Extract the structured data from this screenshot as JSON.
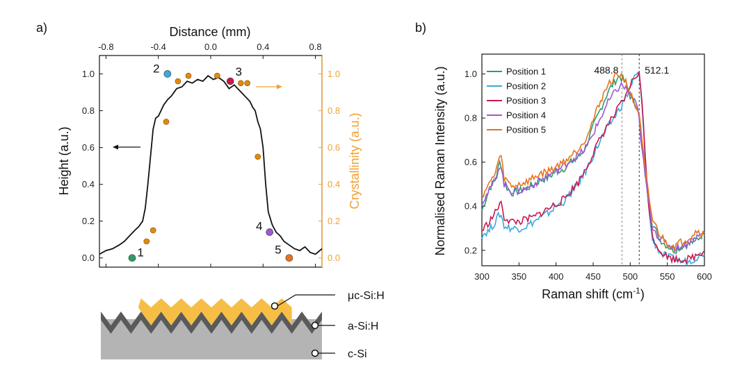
{
  "colors": {
    "height_line": "#111111",
    "crystallinity": "#F0A030",
    "crystallinity_point": "#E08A10",
    "p1": "#2E9C6A",
    "p2": "#39A9DE",
    "p3": "#C8184E",
    "p4": "#9B59D6",
    "p5": "#E8731C",
    "mu_layer": "#F6BE45",
    "a_layer": "#5A5A5A",
    "c_layer": "#B4B4B4"
  },
  "chart_data": [
    {
      "type": "line",
      "panel_label": "a)",
      "title": "Distance (mm)",
      "xlabel": "Distance (mm)",
      "ylabel": "Height (a.u.)",
      "y2label": "Crystallinity (a.u.)",
      "xlim": [
        -0.85,
        0.85
      ],
      "ylim": [
        -0.05,
        1.1
      ],
      "y2lim": [
        -0.05,
        1.1
      ],
      "x_ticks": [
        "-0.8",
        "-0.4",
        "0.0",
        "0.4",
        "0.8"
      ],
      "x_tick_values": [
        -0.8,
        -0.4,
        0.0,
        0.4,
        0.8
      ],
      "y_ticks": [
        "0.0",
        "0.2",
        "0.4",
        "0.6",
        "0.8",
        "1.0"
      ],
      "y_tick_values": [
        0.0,
        0.2,
        0.4,
        0.6,
        0.8,
        1.0
      ],
      "y2_ticks": [
        "0.0",
        "0.2",
        "0.4",
        "0.6",
        "0.8",
        "1.0"
      ],
      "height_profile": {
        "name": "Height",
        "x": [
          -0.85,
          -0.8,
          -0.75,
          -0.7,
          -0.66,
          -0.62,
          -0.58,
          -0.55,
          -0.52,
          -0.5,
          -0.48,
          -0.46,
          -0.44,
          -0.42,
          -0.4,
          -0.38,
          -0.36,
          -0.33,
          -0.3,
          -0.26,
          -0.22,
          -0.18,
          -0.14,
          -0.1,
          -0.06,
          -0.02,
          0.02,
          0.06,
          0.1,
          0.14,
          0.18,
          0.22,
          0.26,
          0.3,
          0.32,
          0.34,
          0.36,
          0.38,
          0.4,
          0.42,
          0.44,
          0.47,
          0.5,
          0.53,
          0.56,
          0.6,
          0.64,
          0.68,
          0.72,
          0.76,
          0.8,
          0.85
        ],
        "y": [
          0.02,
          0.04,
          0.05,
          0.07,
          0.09,
          0.12,
          0.15,
          0.17,
          0.2,
          0.27,
          0.4,
          0.55,
          0.7,
          0.76,
          0.77,
          0.8,
          0.83,
          0.86,
          0.88,
          0.92,
          0.93,
          0.96,
          0.95,
          0.97,
          0.96,
          0.99,
          0.97,
          0.98,
          0.96,
          0.92,
          0.94,
          0.91,
          0.88,
          0.85,
          0.82,
          0.8,
          0.74,
          0.7,
          0.6,
          0.4,
          0.25,
          0.18,
          0.14,
          0.12,
          0.09,
          0.07,
          0.05,
          0.04,
          0.06,
          0.03,
          0.02,
          0.05
        ]
      },
      "crystallinity_points": {
        "name": "Crystallinity",
        "x": [
          -0.49,
          -0.44,
          -0.34,
          -0.25,
          -0.17,
          0.05,
          0.23,
          0.28,
          0.36
        ],
        "y": [
          0.09,
          0.15,
          0.74,
          0.96,
          0.99,
          0.99,
          0.95,
          0.95,
          0.55
        ]
      },
      "positions": [
        {
          "label": "1",
          "x": -0.6,
          "y": 0.0
        },
        {
          "label": "2",
          "x": -0.33,
          "y": 1.0
        },
        {
          "label": "3",
          "x": 0.15,
          "y": 0.96
        },
        {
          "label": "4",
          "x": 0.45,
          "y": 0.14
        },
        {
          "label": "5",
          "x": 0.6,
          "y": 0.0
        }
      ]
    },
    {
      "type": "line",
      "panel_label": "b)",
      "xlabel": "Raman shift (cm",
      "xlabel_sup": "-1",
      "xlabel_end": ")",
      "ylabel": "Normalised Raman Intensity (a.u.)",
      "xlim": [
        300,
        600
      ],
      "ylim": [
        0.13,
        1.09
      ],
      "x_ticks": [
        "300",
        "350",
        "400",
        "450",
        "500",
        "550",
        "600"
      ],
      "x_tick_values": [
        300,
        350,
        400,
        450,
        500,
        550,
        600
      ],
      "y_ticks": [
        "0.2",
        "0.4",
        "0.6",
        "0.8",
        "1.0"
      ],
      "y_tick_values": [
        0.2,
        0.4,
        0.6,
        0.8,
        1.0
      ],
      "peaks": [
        {
          "label": "488.8",
          "x": 488.8
        },
        {
          "label": "512.1",
          "x": 512.1
        }
      ],
      "x": [
        300,
        310,
        318,
        325,
        330,
        340,
        350,
        360,
        370,
        380,
        390,
        400,
        410,
        420,
        430,
        440,
        450,
        460,
        470,
        480,
        485,
        489,
        495,
        500,
        505,
        510,
        512,
        515,
        520,
        525,
        530,
        540,
        550,
        560,
        570,
        580,
        590,
        600
      ],
      "series": [
        {
          "name": "Position 1",
          "values": [
            0.38,
            0.48,
            0.52,
            0.61,
            0.5,
            0.46,
            0.47,
            0.48,
            0.5,
            0.52,
            0.53,
            0.56,
            0.57,
            0.6,
            0.62,
            0.67,
            0.76,
            0.84,
            0.92,
            0.97,
            0.99,
            0.98,
            0.95,
            0.9,
            0.87,
            0.85,
            0.8,
            0.7,
            0.55,
            0.42,
            0.32,
            0.25,
            0.22,
            0.2,
            0.22,
            0.23,
            0.25,
            0.28
          ]
        },
        {
          "name": "Position 2",
          "values": [
            0.27,
            0.29,
            0.33,
            0.37,
            0.31,
            0.3,
            0.3,
            0.31,
            0.33,
            0.35,
            0.37,
            0.4,
            0.42,
            0.46,
            0.5,
            0.56,
            0.63,
            0.7,
            0.76,
            0.81,
            0.84,
            0.86,
            0.9,
            0.94,
            0.98,
            1.0,
            0.99,
            0.9,
            0.62,
            0.38,
            0.25,
            0.19,
            0.17,
            0.16,
            0.15,
            0.15,
            0.17,
            0.19
          ]
        },
        {
          "name": "Position 3",
          "values": [
            0.29,
            0.33,
            0.37,
            0.42,
            0.35,
            0.33,
            0.33,
            0.34,
            0.35,
            0.37,
            0.39,
            0.41,
            0.43,
            0.47,
            0.51,
            0.57,
            0.64,
            0.71,
            0.77,
            0.82,
            0.85,
            0.87,
            0.9,
            0.95,
            0.98,
            1.0,
            1.0,
            0.92,
            0.64,
            0.4,
            0.26,
            0.2,
            0.17,
            0.16,
            0.16,
            0.16,
            0.18,
            0.2
          ]
        },
        {
          "name": "Position 4",
          "values": [
            0.42,
            0.47,
            0.52,
            0.6,
            0.5,
            0.47,
            0.47,
            0.48,
            0.5,
            0.52,
            0.54,
            0.56,
            0.58,
            0.61,
            0.63,
            0.66,
            0.73,
            0.8,
            0.87,
            0.92,
            0.94,
            0.95,
            0.93,
            0.91,
            0.88,
            0.84,
            0.79,
            0.68,
            0.54,
            0.41,
            0.31,
            0.25,
            0.23,
            0.21,
            0.22,
            0.24,
            0.26,
            0.28
          ]
        },
        {
          "name": "Position 5",
          "values": [
            0.45,
            0.5,
            0.55,
            0.64,
            0.53,
            0.49,
            0.5,
            0.51,
            0.53,
            0.55,
            0.56,
            0.58,
            0.6,
            0.63,
            0.66,
            0.71,
            0.79,
            0.88,
            0.95,
            0.99,
            1.0,
            0.99,
            0.96,
            0.91,
            0.87,
            0.84,
            0.81,
            0.72,
            0.57,
            0.44,
            0.34,
            0.27,
            0.23,
            0.22,
            0.24,
            0.26,
            0.29,
            0.27
          ]
        }
      ],
      "series_colors": [
        "#2E9C6A",
        "#39A9DE",
        "#C8184E",
        "#9B59D6",
        "#E8731C"
      ]
    }
  ],
  "schematic": {
    "layers": [
      {
        "label": "μc-Si:H"
      },
      {
        "label": "a-Si:H"
      },
      {
        "label": "c-Si"
      }
    ]
  }
}
